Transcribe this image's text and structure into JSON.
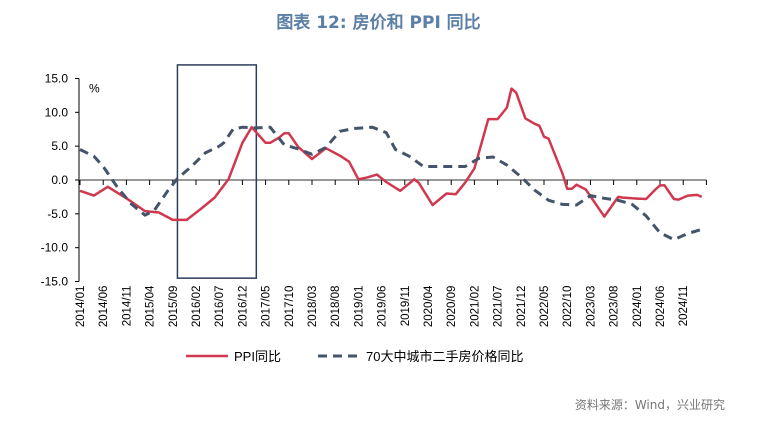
{
  "title": "图表 12: 房价和 PPI 同比",
  "source": "资料来源：Wind，兴业研究",
  "chart_data": {
    "type": "line",
    "title": "图表 12: 房价和 PPI 同比",
    "ylabel": "%",
    "ylim": [
      -15,
      15
    ],
    "yticks": [
      "15.0",
      "10.0",
      "5.0",
      "0.0",
      "-5.0",
      "-10.0",
      "-15.0"
    ],
    "xticks": [
      "2014/01",
      "2014/06",
      "2014/11",
      "2015/04",
      "2015/09",
      "2016/02",
      "2016/07",
      "2016/12",
      "2017/05",
      "2017/10",
      "2018/03",
      "2018/08",
      "2019/01",
      "2019/06",
      "2019/11",
      "2020/04",
      "2020/09",
      "2021/02",
      "2021/07",
      "2021/12",
      "2022/05",
      "2022/10",
      "2023/03",
      "2023/08",
      "2024/01",
      "2024/06",
      "2024/11"
    ],
    "grid": false,
    "legend": "bottom",
    "highlight_box": {
      "x": [
        "2015/10",
        "2017/03"
      ],
      "y": [
        -14.5,
        17
      ]
    },
    "series": [
      {
        "name": "PPI同比",
        "color": "#d0384f",
        "style": "solid",
        "x": [
          "2014/01",
          "2014/04",
          "2014/07",
          "2014/11",
          "2015/03",
          "2015/06",
          "2015/09",
          "2015/12",
          "2016/03",
          "2016/06",
          "2016/09",
          "2016/12",
          "2017/02",
          "2017/05",
          "2017/06",
          "2017/08",
          "2017/09",
          "2017/10",
          "2017/12",
          "2018/03",
          "2018/06",
          "2018/09",
          "2018/11",
          "2019/01",
          "2019/03",
          "2019/05",
          "2019/07",
          "2019/10",
          "2019/12",
          "2020/01",
          "2020/02",
          "2020/05",
          "2020/08",
          "2020/10",
          "2020/12",
          "2021/02",
          "2021/05",
          "2021/07",
          "2021/09",
          "2021/10",
          "2021/11",
          "2022/01",
          "2022/03",
          "2022/04",
          "2022/05",
          "2022/06",
          "2022/09",
          "2022/10",
          "2022/11",
          "2022/12",
          "2023/02",
          "2023/06",
          "2023/09",
          "2023/10",
          "2023/12",
          "2024/03",
          "2024/05",
          "2024/06",
          "2024/07",
          "2024/09",
          "2024/10",
          "2024/12",
          "2025/02",
          "2025/03"
        ],
        "values": [
          -1.6,
          -2.3,
          -1.0,
          -2.7,
          -4.6,
          -4.8,
          -5.9,
          -5.9,
          -4.3,
          -2.6,
          0.1,
          5.5,
          7.8,
          5.5,
          5.5,
          6.3,
          6.9,
          6.9,
          4.9,
          3.1,
          4.7,
          3.6,
          2.7,
          0.1,
          0.4,
          0.8,
          -0.3,
          -1.6,
          -0.5,
          0.1,
          -0.4,
          -3.7,
          -2.0,
          -2.1,
          -0.4,
          1.7,
          9.0,
          9.0,
          10.7,
          13.5,
          12.9,
          9.1,
          8.3,
          8.0,
          6.4,
          6.1,
          0.9,
          -1.3,
          -1.3,
          -0.7,
          -1.4,
          -5.4,
          -2.5,
          -2.6,
          -2.7,
          -2.8,
          -1.4,
          -0.8,
          -0.8,
          -2.8,
          -2.9,
          -2.3,
          -2.2,
          -2.5
        ]
      },
      {
        "name": "70大中城市二手房价格同比",
        "color": "#44546a",
        "style": "dashed",
        "x": [
          "2014/01",
          "2014/04",
          "2014/06",
          "2014/09",
          "2014/12",
          "2015/03",
          "2015/05",
          "2015/08",
          "2015/10",
          "2016/01",
          "2016/04",
          "2016/07",
          "2016/08",
          "2016/10",
          "2016/12",
          "2017/03",
          "2017/06",
          "2017/09",
          "2017/12",
          "2018/03",
          "2018/06",
          "2018/09",
          "2018/12",
          "2019/04",
          "2019/07",
          "2019/09",
          "2019/12",
          "2020/03",
          "2020/06",
          "2020/09",
          "2020/12",
          "2021/03",
          "2021/06",
          "2021/09",
          "2021/12",
          "2022/03",
          "2022/06",
          "2022/09",
          "2022/12",
          "2023/03",
          "2023/06",
          "2023/09",
          "2023/12",
          "2024/03",
          "2024/06",
          "2024/09",
          "2024/12",
          "2025/03"
        ],
        "values": [
          4.5,
          3.5,
          2.0,
          -1.0,
          -3.5,
          -5.2,
          -4.5,
          -1.5,
          0.2,
          2.0,
          4.0,
          5.0,
          5.5,
          7.5,
          7.8,
          7.7,
          7.8,
          5.2,
          4.6,
          3.8,
          4.8,
          7.2,
          7.6,
          7.8,
          7.0,
          4.5,
          3.5,
          2.0,
          2.0,
          2.0,
          2.0,
          3.2,
          3.4,
          2.2,
          0.5,
          -1.5,
          -3.0,
          -3.6,
          -3.7,
          -2.3,
          -2.7,
          -3.0,
          -3.6,
          -5.3,
          -7.8,
          -8.8,
          -7.9,
          -7.3
        ]
      }
    ]
  }
}
